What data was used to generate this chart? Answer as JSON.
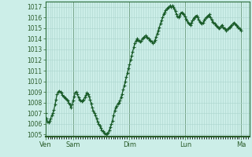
{
  "background_color": "#cceee8",
  "plot_bg_color": "#cceee8",
  "grid_color": "#aad4cc",
  "line_color": "#1a5c2a",
  "marker": "+",
  "marker_color": "#1a5c2a",
  "marker_size": 2.5,
  "line_width": 0.9,
  "ylim": [
    1004.8,
    1017.5
  ],
  "yticks": [
    1005,
    1006,
    1007,
    1008,
    1009,
    1010,
    1011,
    1012,
    1013,
    1014,
    1015,
    1016,
    1017
  ],
  "day_labels": [
    "Ven",
    "Sam",
    "Dim",
    "Lun",
    "Ma"
  ],
  "day_positions": [
    0,
    24,
    72,
    120,
    168
  ],
  "xlim": [
    0,
    175
  ],
  "pressure_data": [
    1007.0,
    1006.5,
    1006.2,
    1006.1,
    1006.3,
    1006.5,
    1006.8,
    1007.0,
    1007.3,
    1007.8,
    1008.3,
    1008.8,
    1009.0,
    1009.1,
    1009.0,
    1008.9,
    1008.7,
    1008.6,
    1008.5,
    1008.4,
    1008.3,
    1008.2,
    1008.0,
    1007.8,
    1007.5,
    1007.8,
    1008.2,
    1008.6,
    1008.9,
    1009.0,
    1008.8,
    1008.5,
    1008.3,
    1008.2,
    1008.1,
    1008.2,
    1008.3,
    1008.5,
    1008.7,
    1008.9,
    1008.8,
    1008.6,
    1008.3,
    1007.9,
    1007.5,
    1007.2,
    1007.0,
    1006.8,
    1006.5,
    1006.2,
    1006.0,
    1005.8,
    1005.6,
    1005.4,
    1005.3,
    1005.2,
    1005.1,
    1005.0,
    1005.1,
    1005.2,
    1005.4,
    1005.7,
    1006.0,
    1006.3,
    1006.8,
    1007.2,
    1007.5,
    1007.7,
    1007.9,
    1008.0,
    1008.2,
    1008.5,
    1008.8,
    1009.2,
    1009.6,
    1010.0,
    1010.4,
    1010.8,
    1011.2,
    1011.6,
    1012.0,
    1012.4,
    1012.8,
    1013.2,
    1013.6,
    1013.8,
    1014.0,
    1013.9,
    1013.8,
    1013.7,
    1013.8,
    1014.0,
    1014.1,
    1014.2,
    1014.3,
    1014.2,
    1014.1,
    1014.0,
    1013.9,
    1013.8,
    1013.7,
    1013.6,
    1013.7,
    1013.9,
    1014.2,
    1014.5,
    1014.8,
    1015.1,
    1015.4,
    1015.7,
    1016.0,
    1016.3,
    1016.5,
    1016.7,
    1016.8,
    1016.9,
    1017.0,
    1017.1,
    1017.0,
    1017.1,
    1017.0,
    1016.8,
    1016.6,
    1016.3,
    1016.1,
    1016.0,
    1016.2,
    1016.4,
    1016.5,
    1016.4,
    1016.3,
    1016.1,
    1015.9,
    1015.7,
    1015.5,
    1015.4,
    1015.3,
    1015.5,
    1015.7,
    1015.9,
    1016.0,
    1016.1,
    1016.2,
    1016.0,
    1015.8,
    1015.6,
    1015.5,
    1015.4,
    1015.5,
    1015.7,
    1015.9,
    1016.0,
    1016.1,
    1016.2,
    1016.3,
    1016.0,
    1015.8,
    1015.6,
    1015.5,
    1015.4,
    1015.3,
    1015.2,
    1015.1,
    1015.0,
    1015.1,
    1015.2,
    1015.3,
    1015.1,
    1015.0,
    1014.9,
    1014.8,
    1014.9,
    1015.0,
    1015.1,
    1015.2,
    1015.3,
    1015.4,
    1015.5,
    1015.4,
    1015.3,
    1015.2,
    1015.1,
    1015.0,
    1014.9,
    1014.8
  ]
}
